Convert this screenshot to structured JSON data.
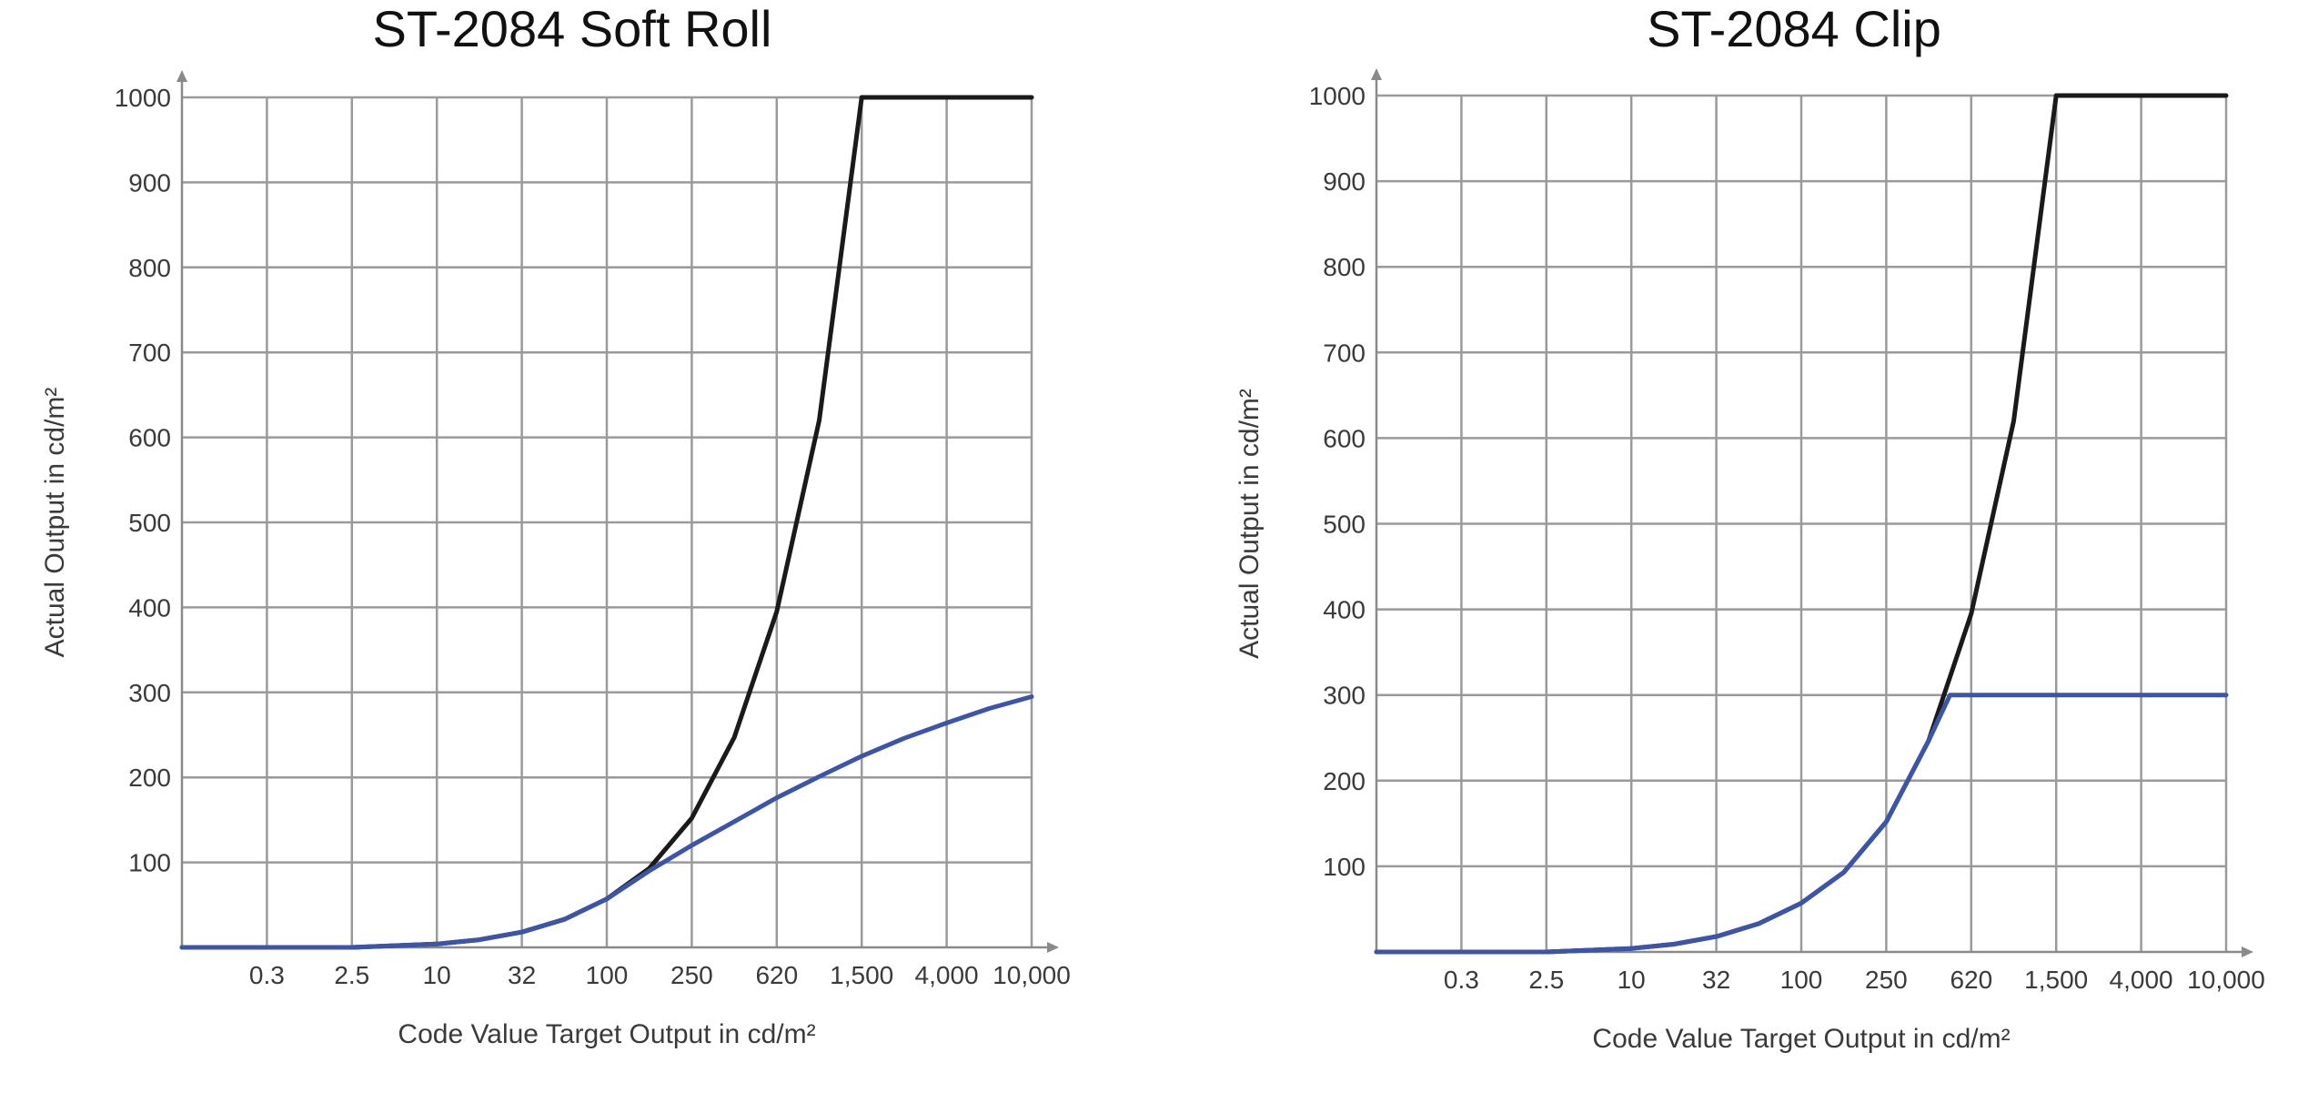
{
  "chart_data": [
    {
      "type": "line",
      "title": "ST-2084 Soft Roll",
      "xlabel": "Code Value Target Output in cd/m²",
      "ylabel": "Actual Output in cd/m²",
      "x_tick_labels": [
        "",
        "0.3",
        "2.5",
        "10",
        "32",
        "100",
        "250",
        "620",
        "1,500",
        "4,000",
        "10,000"
      ],
      "y_ticks": [
        100,
        200,
        300,
        400,
        500,
        600,
        700,
        800,
        900,
        1000
      ],
      "ylim": [
        0,
        1000
      ],
      "grid": true,
      "line_colors": [
        "#1a1a1a",
        "#3d55a8"
      ],
      "series": [
        {
          "values": [
            [
              0,
              0
            ],
            [
              0.5,
              0
            ],
            [
              1,
              0
            ],
            [
              1.5,
              0
            ],
            [
              2,
              0
            ],
            [
              2.5,
              2
            ],
            [
              3,
              4
            ],
            [
              3.5,
              9
            ],
            [
              4,
              18
            ],
            [
              4.5,
              33
            ],
            [
              5,
              57
            ],
            [
              5.5,
              93
            ],
            [
              6,
              152
            ],
            [
              6.5,
              247
            ],
            [
              7,
              395
            ],
            [
              7.5,
              620
            ],
            [
              8,
              1000
            ],
            [
              8.5,
              1000
            ],
            [
              9,
              1000
            ],
            [
              9.5,
              1000
            ],
            [
              10,
              1000
            ]
          ]
        },
        {
          "values": [
            [
              0,
              0
            ],
            [
              0.5,
              0
            ],
            [
              1,
              0
            ],
            [
              1.5,
              0
            ],
            [
              2,
              0
            ],
            [
              2.5,
              2
            ],
            [
              3,
              4
            ],
            [
              3.5,
              9
            ],
            [
              4,
              18
            ],
            [
              4.5,
              33
            ],
            [
              5,
              57
            ],
            [
              5.5,
              90
            ],
            [
              6,
              120
            ],
            [
              6.5,
              148
            ],
            [
              7,
              176
            ],
            [
              7.5,
              201
            ],
            [
              8,
              225
            ],
            [
              8.5,
              246
            ],
            [
              9,
              264
            ],
            [
              9.5,
              281
            ],
            [
              10,
              295
            ]
          ]
        }
      ]
    },
    {
      "type": "line",
      "title": "ST-2084 Clip",
      "xlabel": "Code Value Target Output in cd/m²",
      "ylabel": "Actual Output in cd/m²",
      "x_tick_labels": [
        "",
        "0.3",
        "2.5",
        "10",
        "32",
        "100",
        "250",
        "620",
        "1,500",
        "4,000",
        "10,000"
      ],
      "y_ticks": [
        100,
        200,
        300,
        400,
        500,
        600,
        700,
        800,
        900,
        1000
      ],
      "ylim": [
        0,
        1000
      ],
      "grid": true,
      "line_colors": [
        "#1a1a1a",
        "#3d55a8"
      ],
      "series": [
        {
          "values": [
            [
              0,
              0
            ],
            [
              0.5,
              0
            ],
            [
              1,
              0
            ],
            [
              1.5,
              0
            ],
            [
              2,
              0
            ],
            [
              2.5,
              2
            ],
            [
              3,
              4
            ],
            [
              3.5,
              9
            ],
            [
              4,
              18
            ],
            [
              4.5,
              33
            ],
            [
              5,
              57
            ],
            [
              5.5,
              93
            ],
            [
              6,
              152
            ],
            [
              6.5,
              247
            ],
            [
              7,
              395
            ],
            [
              7.5,
              620
            ],
            [
              8,
              1000
            ],
            [
              8.5,
              1000
            ],
            [
              9,
              1000
            ],
            [
              9.5,
              1000
            ],
            [
              10,
              1000
            ]
          ]
        },
        {
          "values": [
            [
              0,
              0
            ],
            [
              0.5,
              0
            ],
            [
              1,
              0
            ],
            [
              1.5,
              0
            ],
            [
              2,
              0
            ],
            [
              2.5,
              2
            ],
            [
              3,
              4
            ],
            [
              3.5,
              9
            ],
            [
              4,
              18
            ],
            [
              4.5,
              33
            ],
            [
              5,
              57
            ],
            [
              5.5,
              93
            ],
            [
              6,
              152
            ],
            [
              6.5,
              247
            ],
            [
              6.75,
              300
            ],
            [
              7,
              300
            ],
            [
              7.5,
              300
            ],
            [
              8,
              300
            ],
            [
              8.5,
              300
            ],
            [
              9,
              300
            ],
            [
              9.5,
              300
            ],
            [
              10,
              300
            ]
          ]
        }
      ]
    }
  ]
}
